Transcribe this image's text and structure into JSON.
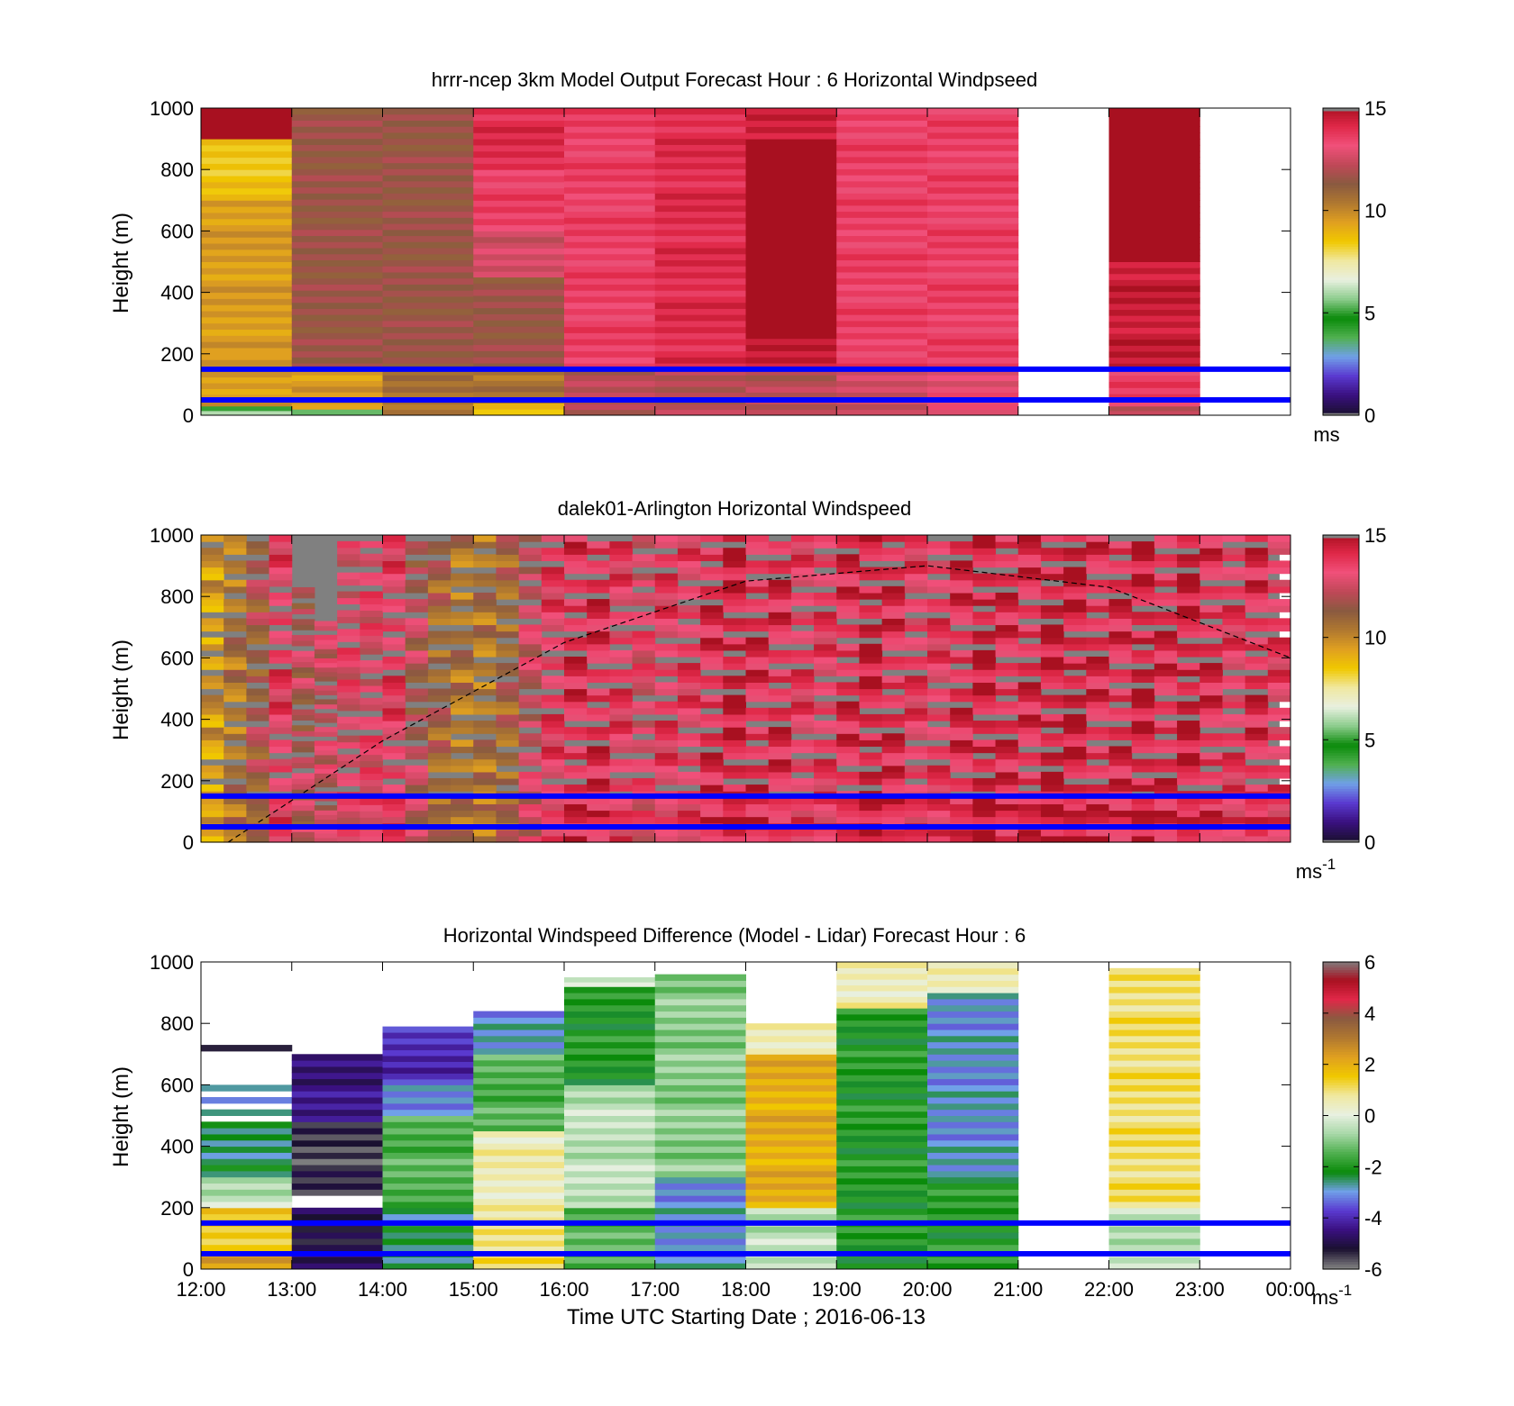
{
  "colors": {
    "speed_scale": [
      "#1a1030",
      "#3a1080",
      "#5a3ad0",
      "#70a0e8",
      "#50b050",
      "#0a8a0a",
      "#8ccc8c",
      "#e8f0e0",
      "#f0e8a0",
      "#f0c800",
      "#e0a020",
      "#b07830",
      "#8a5a40",
      "#c04858",
      "#f0507a",
      "#e02848",
      "#a81020",
      "#808080"
    ],
    "diff_scale": [
      "#808080",
      "#1a1030",
      "#3a1080",
      "#5a3ad0",
      "#70a0e8",
      "#0a8a0a",
      "#50b050",
      "#a8d8a8",
      "#e8f0e0",
      "#f0e8a0",
      "#f0c800",
      "#e0a020",
      "#b07830",
      "#8a5a40",
      "#e02848",
      "#a81020",
      "#808080"
    ],
    "reference_lines": "#0000ff",
    "missing": "#808080"
  },
  "chart_data": [
    {
      "type": "heatmap",
      "title": "hrrr-ncep 3km Model Output   Forecast Hour : 6 Horizontal Windpseed",
      "ylabel": "Height (m)",
      "xlabel": "",
      "ylim": [
        0,
        1000
      ],
      "yticks": [
        "0",
        "200",
        "400",
        "600",
        "800",
        "1000"
      ],
      "x_hours": [
        "12:00",
        "13:00",
        "14:00",
        "15:00",
        "16:00",
        "17:00",
        "18:00",
        "19:00",
        "20:00",
        "21:00",
        "22:00",
        "23:00",
        "00:00"
      ],
      "colorbar": {
        "ticks": [
          "0",
          "5",
          "10",
          "15"
        ],
        "unit": "ms",
        "unit_sup": "",
        "range": [
          0,
          15
        ]
      },
      "reference_lines_m": [
        50,
        150
      ],
      "columns": [
        {
          "hour": "12:00",
          "segments": [
            [
              0,
              15,
              6.5
            ],
            [
              15,
              30,
              5
            ],
            [
              30,
              200,
              9.5
            ],
            [
              200,
              700,
              9.5
            ],
            [
              700,
              900,
              8.5
            ],
            [
              900,
              1000,
              15.5
            ]
          ]
        },
        {
          "hour": "13:00",
          "segments": [
            [
              0,
              20,
              5
            ],
            [
              20,
              150,
              9.5
            ],
            [
              150,
              1000,
              11.5
            ]
          ]
        },
        {
          "hour": "14:00",
          "segments": [
            [
              0,
              150,
              10.5
            ],
            [
              150,
              1000,
              11.5
            ]
          ]
        },
        {
          "hour": "15:00",
          "segments": [
            [
              0,
              40,
              8.5
            ],
            [
              40,
              150,
              10.5
            ],
            [
              150,
              450,
              11.5
            ],
            [
              450,
              600,
              12.5
            ],
            [
              600,
              800,
              13.5
            ],
            [
              800,
              1000,
              14
            ]
          ]
        },
        {
          "hour": "16:00",
          "segments": [
            [
              0,
              150,
              12
            ],
            [
              150,
              1000,
              13.5
            ]
          ]
        },
        {
          "hour": "17:00",
          "segments": [
            [
              0,
              150,
              12
            ],
            [
              150,
              1000,
              14
            ]
          ]
        },
        {
          "hour": "18:00",
          "segments": [
            [
              0,
              150,
              12
            ],
            [
              150,
              250,
              14.5
            ],
            [
              250,
              900,
              15.5
            ],
            [
              900,
              1000,
              14.5
            ]
          ]
        },
        {
          "hour": "19:00",
          "segments": [
            [
              0,
              150,
              12.5
            ],
            [
              150,
              1000,
              13.5
            ]
          ]
        },
        {
          "hour": "20:00",
          "segments": [
            [
              0,
              150,
              13
            ],
            [
              150,
              1000,
              13.5
            ]
          ]
        },
        {
          "hour": "21:00",
          "segments": []
        },
        {
          "hour": "22:00",
          "segments": [
            [
              0,
              30,
              12
            ],
            [
              30,
              150,
              13.5
            ],
            [
              150,
              500,
              14.5
            ],
            [
              500,
              1000,
              15.5
            ]
          ]
        },
        {
          "hour": "23:00",
          "segments": []
        }
      ]
    },
    {
      "type": "heatmap",
      "title": "dalek01-Arlington  Horizontal Windspeed",
      "ylabel": "Height (m)",
      "xlabel": "",
      "ylim": [
        0,
        1000
      ],
      "yticks": [
        "0",
        "200",
        "400",
        "600",
        "800",
        "1000"
      ],
      "x_hours": [
        "12:00",
        "13:00",
        "14:00",
        "15:00",
        "16:00",
        "17:00",
        "18:00",
        "19:00",
        "20:00",
        "21:00",
        "22:00",
        "23:00",
        "00:00"
      ],
      "colorbar": {
        "ticks": [
          "0",
          "5",
          "10",
          "15"
        ],
        "unit": "ms",
        "unit_sup": "-1",
        "range": [
          0,
          15
        ]
      },
      "reference_lines_m": [
        50,
        150
      ],
      "overlay_curve": {
        "x_hours": [
          12.3,
          14,
          16,
          18,
          20,
          22,
          24
        ],
        "height_m": [
          0,
          330,
          650,
          850,
          900,
          830,
          600
        ]
      },
      "columns_per_hour": 4,
      "column_tops_m": [
        1000,
        1000,
        1000,
        1000,
        830,
        720,
        980,
        980,
        1000,
        1000,
        1000,
        1000,
        1000,
        1000,
        1000,
        1000,
        1000,
        1000,
        1000,
        1000,
        1000,
        1000,
        1000,
        1000,
        1000,
        1000,
        1000,
        1000,
        1000,
        1000,
        1000,
        1000,
        1000,
        1000,
        1000,
        1000,
        1000,
        1000,
        1000,
        1000,
        1000,
        1000,
        1000,
        1000,
        1000,
        1000,
        1000,
        1000
      ],
      "column_base_m": [
        0,
        0,
        0,
        0,
        0,
        0,
        0,
        0,
        0,
        0,
        0,
        0,
        0,
        0,
        0,
        0,
        0,
        0,
        0,
        0,
        0,
        0,
        0,
        0,
        0,
        0,
        0,
        0,
        0,
        0,
        0,
        0,
        0,
        0,
        0,
        0,
        0,
        0,
        0,
        0,
        0,
        0,
        0,
        0,
        0,
        0,
        0,
        0
      ],
      "column_speed_ms": [
        9.5,
        10.5,
        11.5,
        13.5,
        12,
        12.5,
        13,
        13,
        13.5,
        12,
        11,
        10.5,
        10.5,
        11,
        12.5,
        13.5,
        14,
        14,
        13.5,
        13,
        13.5,
        13.5,
        14,
        14.5,
        14,
        14,
        13.5,
        13.5,
        14,
        14.5,
        14,
        13.5,
        13.5,
        14,
        14.5,
        14,
        14,
        14.5,
        14.5,
        14,
        14,
        14.5,
        14,
        14.5,
        14,
        13.5,
        14,
        13.5
      ]
    },
    {
      "type": "heatmap",
      "title": "Horizontal Windspeed Difference (Model - Lidar) Forecast Hour : 6",
      "ylabel": "Height (m)",
      "xlabel": "Time UTC  Starting Date ; 2016-06-13",
      "ylim": [
        0,
        1000
      ],
      "yticks": [
        "0",
        "200",
        "400",
        "600",
        "800",
        "1000"
      ],
      "x_hours": [
        "12:00",
        "13:00",
        "14:00",
        "15:00",
        "16:00",
        "17:00",
        "18:00",
        "19:00",
        "20:00",
        "21:00",
        "22:00",
        "23:00",
        "00:00"
      ],
      "colorbar": {
        "ticks": [
          "-6",
          "-4",
          "-2",
          "0",
          "2",
          "4",
          "6"
        ],
        "unit": "ms",
        "unit_sup": "-1",
        "range": [
          -6,
          6
        ]
      },
      "reference_lines_m": [
        50,
        150
      ],
      "columns": [
        {
          "hour": "12:00",
          "segments": [
            [
              0,
              60,
              2.5
            ],
            [
              60,
              200,
              1.5
            ],
            [
              200,
              300,
              -0.5
            ],
            [
              300,
              480,
              -2.5
            ],
            [
              500,
              520,
              -3
            ],
            [
              540,
              560,
              -3
            ],
            [
              580,
              600,
              -3
            ],
            [
              710,
              730,
              -5
            ]
          ]
        },
        {
          "hour": "13:00",
          "segments": [
            [
              0,
              200,
              -5
            ],
            [
              240,
              480,
              -5.5
            ],
            [
              480,
              700,
              -4.5
            ]
          ]
        },
        {
          "hour": "14:00",
          "segments": [
            [
              0,
              200,
              -2.5
            ],
            [
              200,
              500,
              -1.5
            ],
            [
              500,
              600,
              -3
            ],
            [
              600,
              790,
              -4
            ]
          ]
        },
        {
          "hour": "15:00",
          "segments": [
            [
              0,
              150,
              1
            ],
            [
              150,
              450,
              0.5
            ],
            [
              450,
              700,
              -1.5
            ],
            [
              700,
              840,
              -3
            ]
          ]
        },
        {
          "hour": "16:00",
          "segments": [
            [
              0,
              200,
              -1.5
            ],
            [
              200,
              600,
              -0.5
            ],
            [
              600,
              920,
              -2
            ],
            [
              920,
              950,
              0
            ]
          ]
        },
        {
          "hour": "17:00",
          "segments": [
            [
              0,
              300,
              -3
            ],
            [
              300,
              960,
              -1
            ]
          ]
        },
        {
          "hour": "18:00",
          "segments": [
            [
              0,
              200,
              -0.5
            ],
            [
              200,
              700,
              2
            ],
            [
              700,
              800,
              0.5
            ]
          ]
        },
        {
          "hour": "19:00",
          "segments": [
            [
              0,
              850,
              -2
            ],
            [
              850,
              1000,
              0.5
            ]
          ]
        },
        {
          "hour": "20:00",
          "segments": [
            [
              0,
              300,
              -2
            ],
            [
              300,
              900,
              -3
            ],
            [
              900,
              1000,
              0.5
            ]
          ]
        },
        {
          "hour": "21:00",
          "segments": []
        },
        {
          "hour": "22:00",
          "segments": [
            [
              0,
              200,
              -0.5
            ],
            [
              200,
              980,
              1
            ]
          ]
        },
        {
          "hour": "23:00",
          "segments": []
        }
      ]
    }
  ]
}
